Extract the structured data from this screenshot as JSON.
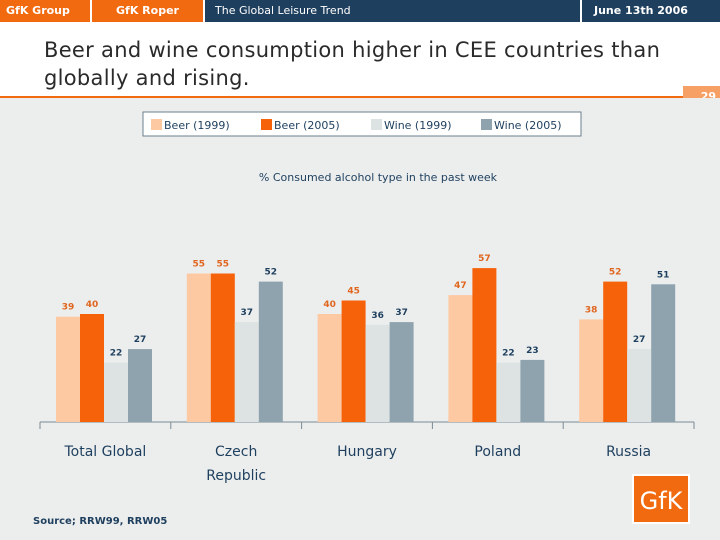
{
  "header": {
    "brand": "GfK Group",
    "division": "GfK Roper",
    "report": "The Global Leisure Trend",
    "date": "June 13th 2006"
  },
  "slide": {
    "title": "Beer and wine consumption higher in CEE countries than globally and rising.",
    "number": "29",
    "source": "Source; RRW99, RRW05",
    "logo": "GfK"
  },
  "colors": {
    "accent": "#f26a10",
    "navy": "#1e3f5e",
    "steel": "#5b7a92"
  },
  "chart_data": {
    "type": "bar",
    "title": "% Consumed alcohol type in the past week",
    "categories": [
      "Total Global",
      "Czech Republic",
      "Hungary",
      "Poland",
      "Russia"
    ],
    "series": [
      {
        "name": "Beer (1999)",
        "color": "#fdc9a2",
        "label_color": "#e0661f",
        "values": [
          39,
          55,
          40,
          47,
          38
        ]
      },
      {
        "name": "Beer (2005)",
        "color": "#f6620a",
        "label_color": "#e0661f",
        "values": [
          40,
          55,
          45,
          57,
          52
        ]
      },
      {
        "name": "Wine (1999)",
        "color": "#dde3e3",
        "label_color": "#1e3f5e",
        "values": [
          22,
          37,
          36,
          22,
          27
        ]
      },
      {
        "name": "Wine (2005)",
        "color": "#8fa3ae",
        "label_color": "#1e3f5e",
        "values": [
          27,
          52,
          37,
          23,
          51
        ]
      }
    ],
    "ylim": [
      0,
      65
    ],
    "legend": "top-center",
    "grid": false
  }
}
